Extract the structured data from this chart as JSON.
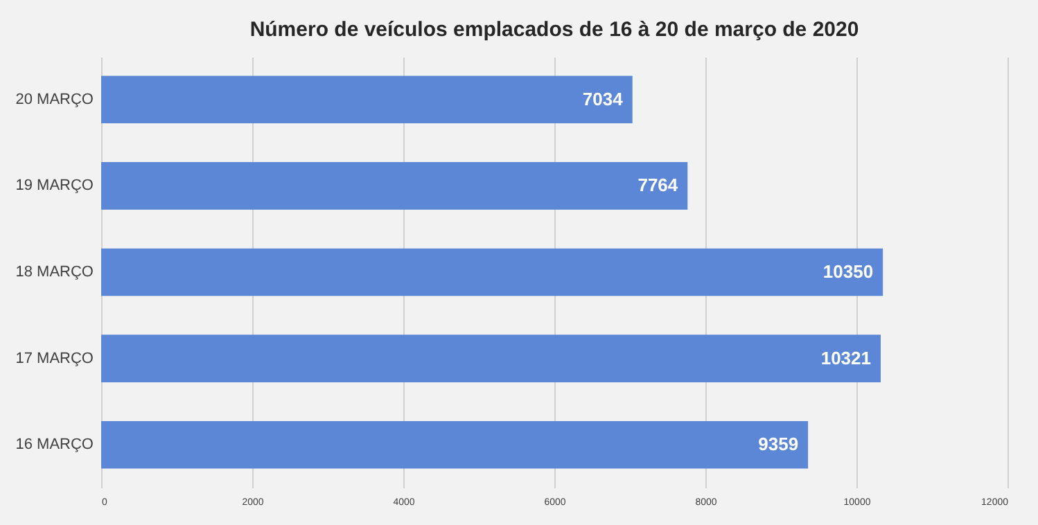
{
  "chart_data": {
    "type": "bar",
    "orientation": "horizontal",
    "title": "Número de veículos emplacados de 16 à 20 de março de 2020",
    "categories": [
      "20 MARÇO",
      "19 MARÇO",
      "18 MARÇO",
      "17 MARÇO",
      "16 MARÇO"
    ],
    "values": [
      7034,
      7764,
      10350,
      10321,
      9359
    ],
    "color": "#5b87d6",
    "xlim": [
      0,
      12000
    ],
    "xticks": [
      0,
      2000,
      4000,
      6000,
      8000,
      10000,
      12000
    ],
    "grid": "x",
    "data_labels": true
  }
}
